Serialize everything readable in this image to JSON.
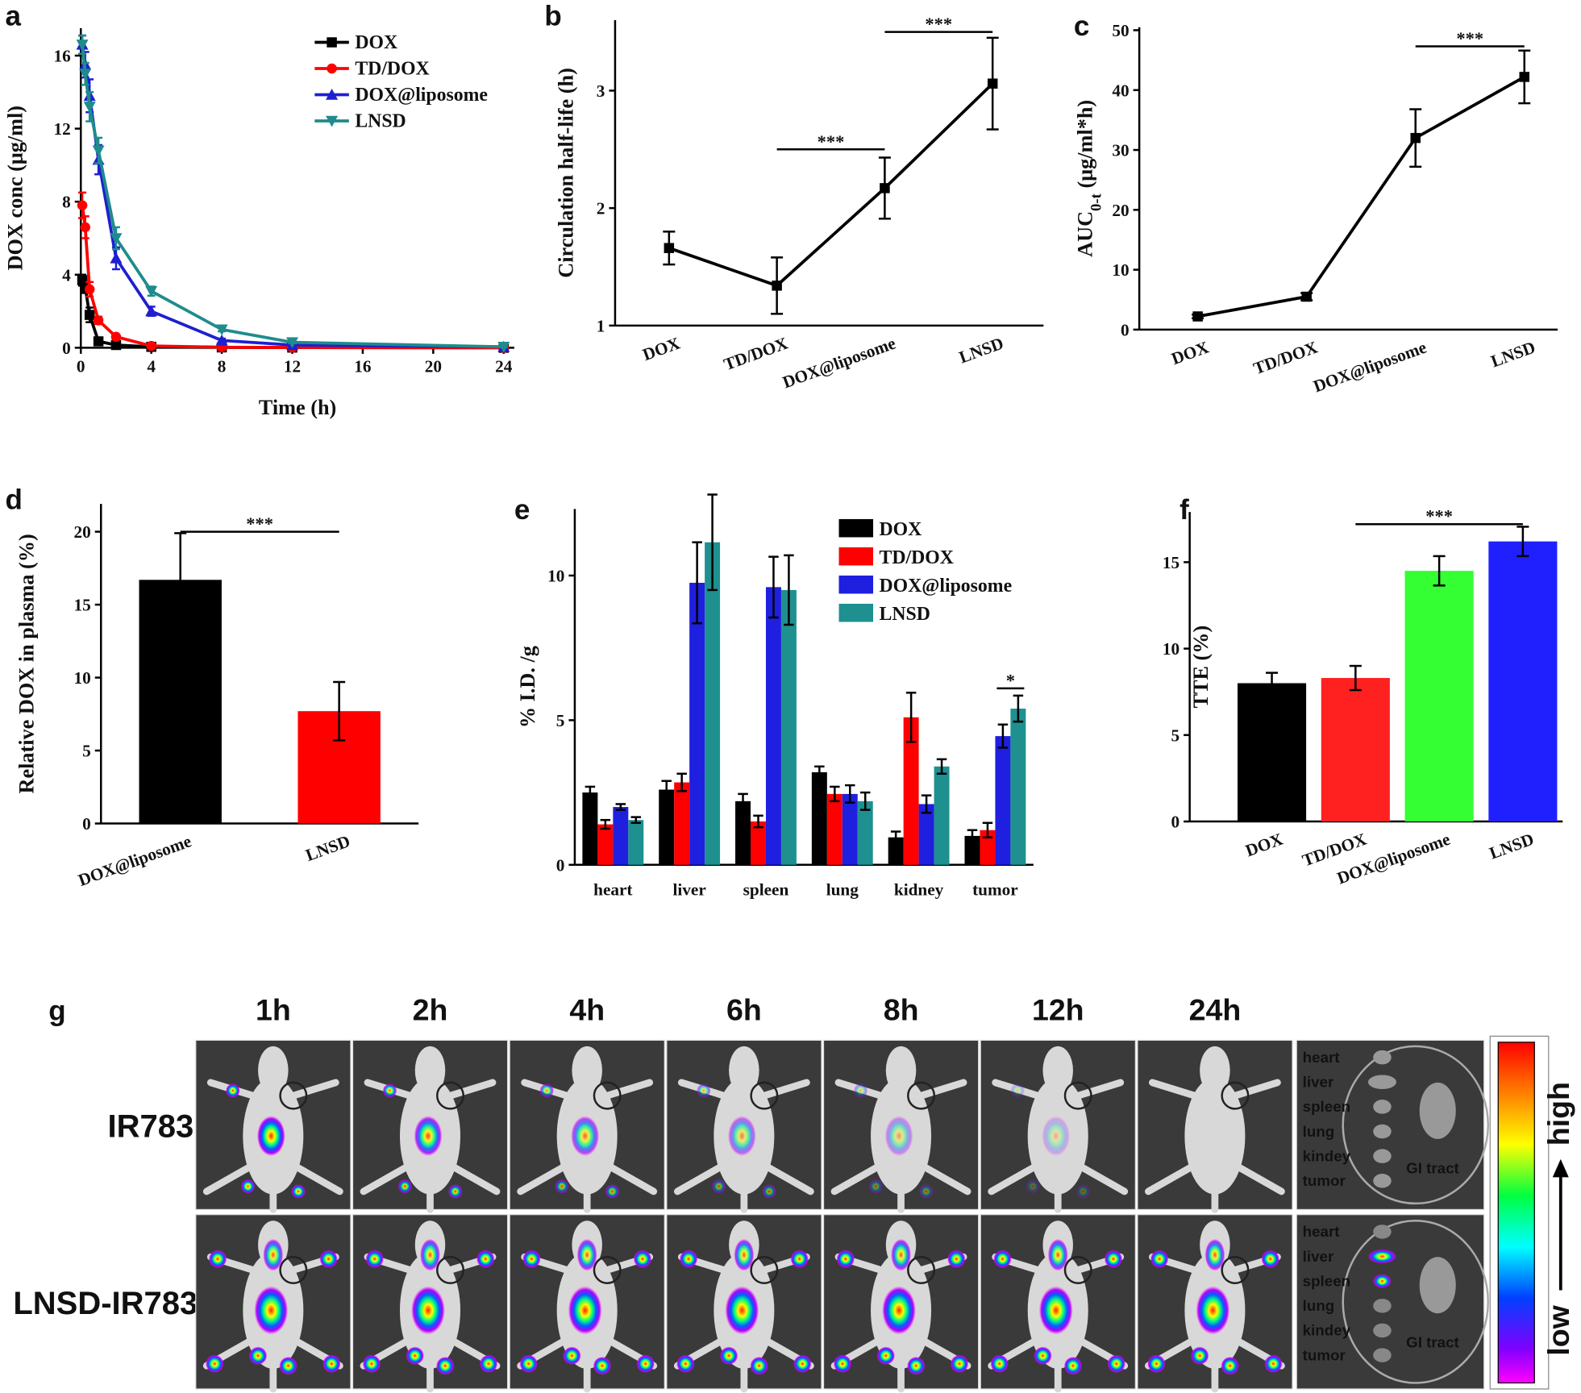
{
  "chart_data": [
    {
      "panel": "a",
      "type": "line",
      "x_label": "Time (h)",
      "y_label": "DOX conc (μg/ml)",
      "x": [
        0.083,
        0.25,
        0.5,
        1,
        2,
        4,
        8,
        12,
        24
      ],
      "xlim": [
        0,
        24.6
      ],
      "xticks": [
        0,
        4,
        8,
        12,
        16,
        20,
        24
      ],
      "ylim": [
        0,
        17.5
      ],
      "yticks": [
        0,
        4,
        8,
        12,
        16
      ],
      "legend": "upper right",
      "series": [
        {
          "name": "DOX",
          "color": "#000000",
          "marker": "square",
          "values": [
            3.7,
            3.3,
            1.8,
            0.35,
            0.15,
            0.05,
            0.02,
            0.01,
            0
          ],
          "errors": [
            0.3,
            0.3,
            0.4,
            0.1,
            0.05,
            0.02,
            0.01,
            0.01,
            0.01
          ]
        },
        {
          "name": "TD/DOX",
          "color": "#ff0000",
          "marker": "circle",
          "values": [
            7.8,
            6.6,
            3.2,
            1.5,
            0.6,
            0.1,
            0.03,
            0.01,
            0
          ],
          "errors": [
            0.7,
            0.6,
            0.4,
            0.2,
            0.1,
            0.05,
            0.01,
            0.01,
            0.01
          ]
        },
        {
          "name": "DOX@liposome",
          "color": "#1f1fd0",
          "marker": "triangle-up",
          "values": [
            16.6,
            15.5,
            13.8,
            10.3,
            4.9,
            2.0,
            0.4,
            0.15,
            0.05
          ],
          "errors": [
            0.5,
            0.7,
            0.9,
            0.8,
            0.6,
            0.25,
            0.1,
            0.05,
            0.02
          ]
        },
        {
          "name": "LNSD",
          "color": "#1e8c8c",
          "marker": "triangle-down",
          "values": [
            16.6,
            15.0,
            13.2,
            10.8,
            6.0,
            3.1,
            1.0,
            0.3,
            0.05
          ],
          "errors": [
            0.5,
            0.6,
            0.8,
            0.7,
            0.6,
            0.25,
            0.1,
            0.05,
            0.02
          ]
        }
      ]
    },
    {
      "panel": "b",
      "type": "line",
      "y_label": "Circulation half-life (h)",
      "categories": [
        "DOX",
        "TD/DOX",
        "DOX@liposome",
        "LNSD"
      ],
      "ylim": [
        1,
        3.6
      ],
      "yticks": [
        1,
        2,
        3
      ],
      "series": [
        {
          "color": "#000000",
          "values": [
            1.66,
            1.34,
            2.17,
            3.06
          ],
          "errors": [
            0.14,
            0.24,
            0.26,
            0.39
          ]
        }
      ],
      "annotations": [
        "***",
        "***"
      ]
    },
    {
      "panel": "c",
      "type": "line",
      "y_label": [
        "AUC",
        "0-t",
        " (μg/ml*h)"
      ],
      "categories": [
        "DOX",
        "TD/DOX",
        "DOX@liposome",
        "LNSD"
      ],
      "ylim": [
        0,
        50.5
      ],
      "yticks": [
        0,
        10,
        20,
        30,
        40,
        50
      ],
      "series": [
        {
          "color": "#000000",
          "values": [
            2.2,
            5.5,
            32,
            42.2
          ],
          "errors": [
            0.3,
            0.6,
            4.8,
            4.4
          ]
        }
      ],
      "annotations": [
        "***"
      ]
    },
    {
      "panel": "d",
      "type": "bar",
      "y_label": "Relative DOX in plasma (%)",
      "categories": [
        "DOX@liposome",
        "LNSD"
      ],
      "ylim": [
        0,
        21.9
      ],
      "yticks": [
        0,
        5,
        10,
        15,
        20
      ],
      "values": [
        16.7,
        7.7
      ],
      "errors": [
        3.2,
        2.0
      ],
      "colors": [
        "#000000",
        "#ff0000"
      ],
      "annotations": [
        "***"
      ]
    },
    {
      "panel": "e",
      "type": "grouped-bar",
      "y_label": "% I.D. /g",
      "categories": [
        "heart",
        "liver",
        "spleen",
        "lung",
        "kidney",
        "tumor"
      ],
      "ylim": [
        0,
        12.3
      ],
      "yticks": [
        0,
        5,
        10
      ],
      "legend": "upper right",
      "series": [
        {
          "name": "DOX",
          "color": "#000000",
          "values": [
            2.5,
            2.6,
            2.2,
            3.2,
            0.95,
            1.0
          ],
          "errors": [
            0.2,
            0.3,
            0.25,
            0.2,
            0.2,
            0.2
          ]
        },
        {
          "name": "TD/DOX",
          "color": "#ff0000",
          "values": [
            1.4,
            2.85,
            1.5,
            2.45,
            5.1,
            1.2
          ],
          "errors": [
            0.15,
            0.3,
            0.2,
            0.25,
            0.85,
            0.25
          ]
        },
        {
          "name": "DOX@liposome",
          "color": "#1f1fe0",
          "values": [
            2.0,
            9.75,
            9.6,
            2.45,
            2.1,
            4.45
          ],
          "errors": [
            0.1,
            1.4,
            1.05,
            0.3,
            0.3,
            0.4
          ]
        },
        {
          "name": "LNSD",
          "color": "#1e9090",
          "values": [
            1.55,
            11.15,
            9.5,
            2.2,
            3.4,
            5.4
          ],
          "errors": [
            0.1,
            1.65,
            1.2,
            0.3,
            0.25,
            0.45
          ]
        }
      ],
      "annotations": [
        "*"
      ]
    },
    {
      "panel": "f",
      "type": "bar",
      "y_label": "TTE (%)",
      "categories": [
        "DOX",
        "TD/DOX",
        "DOX@liposome",
        "LNSD"
      ],
      "ylim": [
        0,
        17.9
      ],
      "yticks": [
        0,
        5,
        10,
        15
      ],
      "values": [
        8.0,
        8.3,
        14.5,
        16.2
      ],
      "errors": [
        0.6,
        0.7,
        0.85,
        0.85
      ],
      "colors": [
        "#000000",
        "#ff2020",
        "#33ff33",
        "#2020ff"
      ],
      "annotations": [
        "***"
      ]
    }
  ],
  "imaging": {
    "panel": "g",
    "time_labels": [
      "1h",
      "2h",
      "4h",
      "6h",
      "8h",
      "12h",
      "24h"
    ],
    "row_labels": [
      "IR783",
      "LNSD-IR783"
    ],
    "organ_labels": [
      "heart",
      "liver",
      "spleen",
      "lung",
      "kindey",
      "tumor"
    ],
    "gi_label": "GI tract",
    "scale_low": "low",
    "scale_high": "high"
  }
}
